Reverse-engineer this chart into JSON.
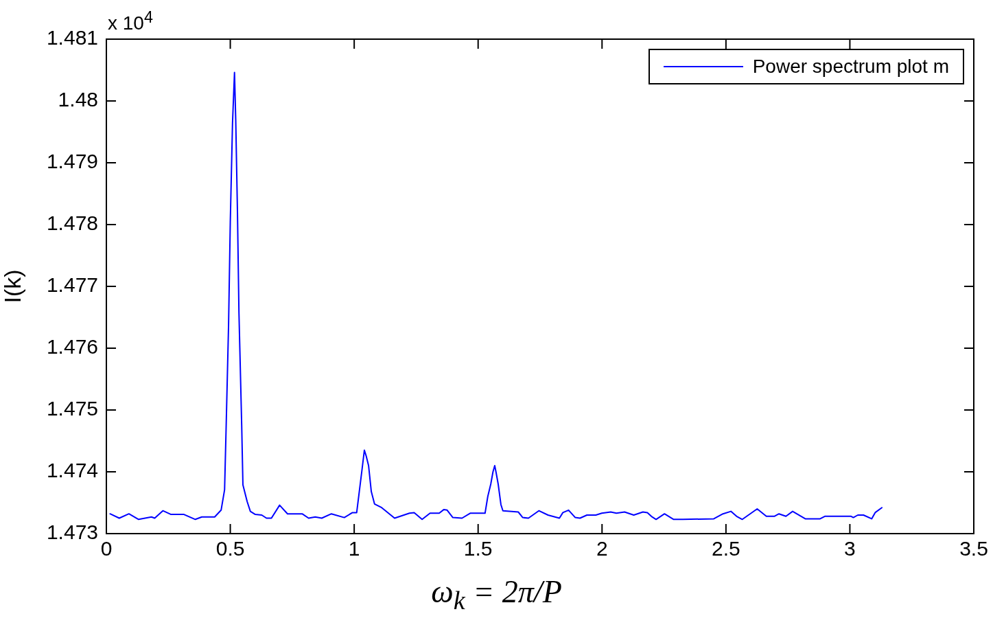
{
  "chart_data": {
    "type": "line",
    "xlabel": "ω$_{k}$ = 2π/P",
    "ylabel": "I(k)",
    "annotations": [
      "x 10$^{4}$"
    ],
    "xlim": [
      0,
      3.5
    ],
    "xticks": [
      0,
      0.5,
      1,
      1.5,
      2,
      2.5,
      3,
      3.5
    ],
    "ylim": [
      1.473,
      1.481
    ],
    "yticks": [
      1.473,
      1.474,
      1.475,
      1.476,
      1.477,
      1.478,
      1.479,
      1.48,
      1.481
    ],
    "legend": "top right",
    "grid": false,
    "marker": "none",
    "line_style": "solid",
    "series": [
      {
        "name": "Power spectrum plot m",
        "color": "#0000ff",
        "x": [
          0.015,
          0.052,
          0.091,
          0.13,
          0.182,
          0.195,
          0.228,
          0.261,
          0.313,
          0.359,
          0.385,
          0.437,
          0.463,
          0.477,
          0.483,
          0.493,
          0.5,
          0.509,
          0.517,
          0.522,
          0.529,
          0.535,
          0.546,
          0.551,
          0.568,
          0.581,
          0.601,
          0.627,
          0.646,
          0.666,
          0.699,
          0.731,
          0.79,
          0.816,
          0.843,
          0.869,
          0.908,
          0.96,
          0.993,
          1.01,
          1.019,
          1.032,
          1.041,
          1.048,
          1.058,
          1.069,
          1.082,
          1.111,
          1.163,
          1.223,
          1.242,
          1.274,
          1.306,
          1.343,
          1.362,
          1.375,
          1.398,
          1.435,
          1.468,
          1.528,
          1.539,
          1.551,
          1.56,
          1.567,
          1.572,
          1.581,
          1.592,
          1.6,
          1.662,
          1.68,
          1.703,
          1.745,
          1.782,
          1.828,
          1.842,
          1.865,
          1.892,
          1.911,
          1.939,
          1.975,
          1.999,
          2.035,
          2.058,
          2.091,
          2.128,
          2.165,
          2.183,
          2.202,
          2.218,
          2.252,
          2.289,
          2.326,
          2.451,
          2.488,
          2.52,
          2.543,
          2.566,
          2.626,
          2.663,
          2.695,
          2.714,
          2.742,
          2.769,
          2.82,
          2.88,
          2.899,
          3.005,
          3.014,
          3.032,
          3.055,
          3.088,
          3.102,
          3.129
        ],
        "values": [
          1.47332,
          1.47325,
          1.47332,
          1.47323,
          1.47327,
          1.47325,
          1.47337,
          1.47331,
          1.47331,
          1.47323,
          1.47327,
          1.47327,
          1.47338,
          1.47371,
          1.47468,
          1.47636,
          1.47804,
          1.47964,
          1.48046,
          1.47969,
          1.47819,
          1.47657,
          1.47476,
          1.47379,
          1.47352,
          1.47336,
          1.47331,
          1.4733,
          1.47325,
          1.47325,
          1.47346,
          1.47332,
          1.47332,
          1.47325,
          1.47327,
          1.47325,
          1.47332,
          1.47326,
          1.47334,
          1.47334,
          1.47363,
          1.47405,
          1.47435,
          1.47426,
          1.4741,
          1.47368,
          1.47348,
          1.47342,
          1.47325,
          1.47333,
          1.47334,
          1.47323,
          1.47333,
          1.47333,
          1.47339,
          1.47338,
          1.47326,
          1.47325,
          1.47333,
          1.47333,
          1.4736,
          1.4738,
          1.474,
          1.4741,
          1.474,
          1.4738,
          1.47347,
          1.47337,
          1.47335,
          1.47326,
          1.47325,
          1.47337,
          1.4733,
          1.47325,
          1.47334,
          1.47338,
          1.47326,
          1.47325,
          1.4733,
          1.4733,
          1.47333,
          1.47335,
          1.47333,
          1.47335,
          1.4733,
          1.47335,
          1.47334,
          1.47327,
          1.47323,
          1.47332,
          1.47323,
          1.47323,
          1.47324,
          1.47332,
          1.47336,
          1.47328,
          1.47323,
          1.4734,
          1.47328,
          1.47328,
          1.47332,
          1.47328,
          1.47336,
          1.47324,
          1.47324,
          1.47328,
          1.47328,
          1.47326,
          1.4733,
          1.4733,
          1.47324,
          1.47334,
          1.47342
        ]
      }
    ]
  }
}
